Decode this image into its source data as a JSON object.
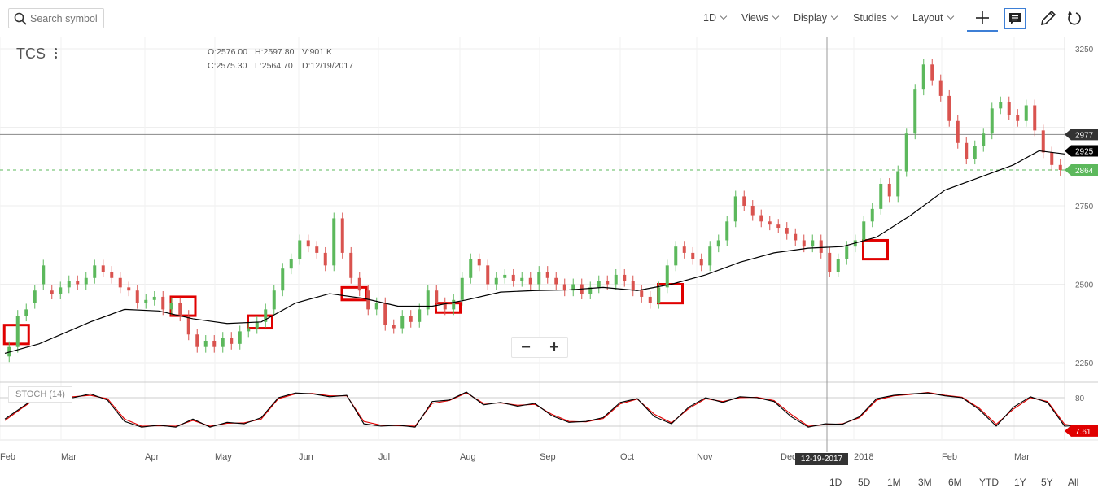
{
  "search": {
    "placeholder": "Search symbol"
  },
  "toolbar": {
    "interval": "1D",
    "views": "Views",
    "display": "Display",
    "studies": "Studies",
    "layout": "Layout"
  },
  "symbol": "TCS",
  "ohlc": {
    "open": "O:2576.00",
    "high": "H:2597.80",
    "volume": "V:901 K",
    "close": "C:2575.30",
    "low": "L:2564.70",
    "date": "D:12/19/2017"
  },
  "study_label": "STOCH (14)",
  "crosshair_date": "12-19-2017",
  "ranges": [
    "1D",
    "5D",
    "1M",
    "3M",
    "6M",
    "YTD",
    "1Y",
    "5Y",
    "All"
  ],
  "colors": {
    "up": "#5cb85c",
    "down": "#d9534f",
    "ma": "#000000",
    "stoch_k": "#000000",
    "stoch_d": "#e00000",
    "highlight": "#e00000"
  },
  "chart_data": {
    "type": "candlestick",
    "title": "TCS",
    "price_axis": {
      "ticks": [
        "3250",
        "2750",
        "2500",
        "2250"
      ],
      "ylim": [
        2200,
        3270
      ]
    },
    "x_axis": {
      "ticks": [
        "Feb",
        "Mar",
        "Apr",
        "May",
        "Jun",
        "Jul",
        "Aug",
        "Sep",
        "Oct",
        "Nov",
        "Dec",
        "2018",
        "Feb",
        "Mar"
      ]
    },
    "markers": {
      "crosshair_price": "2977",
      "ma_value": "2925",
      "last_price": "2864"
    },
    "series": [
      {
        "type": "candlestick",
        "values": [
          [
            1,
            2270,
            2300
          ],
          [
            3,
            2300,
            2400
          ],
          [
            5,
            2400,
            2420
          ],
          [
            7,
            2440,
            2480
          ],
          [
            9,
            2500,
            2560
          ],
          [
            11,
            2480,
            2470
          ],
          [
            13,
            2470,
            2490
          ],
          [
            15,
            2490,
            2510
          ],
          [
            17,
            2510,
            2500
          ],
          [
            19,
            2500,
            2520
          ],
          [
            21,
            2520,
            2560
          ],
          [
            23,
            2560,
            2540
          ],
          [
            25,
            2540,
            2520
          ],
          [
            27,
            2520,
            2490
          ],
          [
            29,
            2490,
            2480
          ],
          [
            31,
            2480,
            2440
          ],
          [
            33,
            2440,
            2450
          ],
          [
            35,
            2450,
            2460
          ],
          [
            37,
            2460,
            2420
          ],
          [
            39,
            2420,
            2440
          ],
          [
            41,
            2440,
            2400
          ],
          [
            43,
            2400,
            2340
          ],
          [
            45,
            2340,
            2300
          ],
          [
            47,
            2300,
            2320
          ],
          [
            49,
            2320,
            2300
          ],
          [
            51,
            2300,
            2330
          ],
          [
            53,
            2330,
            2310
          ],
          [
            55,
            2310,
            2350
          ],
          [
            57,
            2350,
            2360
          ],
          [
            59,
            2360,
            2380
          ],
          [
            61,
            2380,
            2420
          ],
          [
            63,
            2420,
            2480
          ],
          [
            65,
            2480,
            2550
          ],
          [
            67,
            2550,
            2580
          ],
          [
            69,
            2580,
            2640
          ],
          [
            71,
            2640,
            2620
          ],
          [
            73,
            2620,
            2600
          ],
          [
            75,
            2600,
            2560
          ],
          [
            77,
            2560,
            2710
          ],
          [
            79,
            2710,
            2600
          ],
          [
            81,
            2600,
            2520
          ],
          [
            83,
            2520,
            2480
          ],
          [
            85,
            2480,
            2420
          ],
          [
            87,
            2420,
            2440
          ],
          [
            89,
            2440,
            2370
          ],
          [
            91,
            2370,
            2360
          ],
          [
            93,
            2360,
            2400
          ],
          [
            95,
            2400,
            2380
          ],
          [
            97,
            2380,
            2420
          ],
          [
            99,
            2420,
            2480
          ],
          [
            101,
            2480,
            2440
          ],
          [
            103,
            2440,
            2420
          ],
          [
            105,
            2420,
            2450
          ],
          [
            107,
            2450,
            2520
          ],
          [
            109,
            2520,
            2580
          ],
          [
            111,
            2580,
            2560
          ],
          [
            113,
            2560,
            2500
          ],
          [
            115,
            2500,
            2520
          ],
          [
            117,
            2520,
            2530
          ],
          [
            119,
            2530,
            2510
          ],
          [
            121,
            2510,
            2520
          ],
          [
            123,
            2520,
            2500
          ],
          [
            125,
            2500,
            2540
          ],
          [
            127,
            2540,
            2520
          ],
          [
            129,
            2520,
            2500
          ],
          [
            131,
            2500,
            2480
          ],
          [
            133,
            2480,
            2500
          ],
          [
            135,
            2500,
            2470
          ],
          [
            137,
            2470,
            2490
          ],
          [
            139,
            2490,
            2510
          ],
          [
            141,
            2510,
            2500
          ],
          [
            143,
            2500,
            2530
          ],
          [
            145,
            2530,
            2510
          ],
          [
            147,
            2510,
            2480
          ],
          [
            149,
            2480,
            2460
          ],
          [
            151,
            2460,
            2440
          ],
          [
            153,
            2440,
            2490
          ],
          [
            155,
            2490,
            2560
          ],
          [
            157,
            2560,
            2620
          ],
          [
            159,
            2620,
            2600
          ],
          [
            161,
            2600,
            2580
          ],
          [
            163,
            2580,
            2560
          ],
          [
            165,
            2560,
            2620
          ],
          [
            167,
            2620,
            2640
          ],
          [
            169,
            2640,
            2700
          ],
          [
            171,
            2700,
            2780
          ],
          [
            173,
            2780,
            2750
          ],
          [
            175,
            2750,
            2720
          ],
          [
            177,
            2720,
            2700
          ],
          [
            179,
            2700,
            2690
          ],
          [
            181,
            2690,
            2680
          ],
          [
            183,
            2680,
            2660
          ],
          [
            185,
            2660,
            2640
          ],
          [
            187,
            2640,
            2620
          ],
          [
            189,
            2620,
            2640
          ],
          [
            191,
            2640,
            2600
          ],
          [
            193,
            2600,
            2540
          ],
          [
            195,
            2540,
            2580
          ],
          [
            197,
            2580,
            2620
          ],
          [
            199,
            2620,
            2640
          ],
          [
            201,
            2640,
            2700
          ],
          [
            203,
            2700,
            2740
          ],
          [
            205,
            2740,
            2820
          ],
          [
            207,
            2820,
            2780
          ],
          [
            209,
            2780,
            2860
          ],
          [
            211,
            2860,
            2980
          ],
          [
            213,
            2980,
            3120
          ],
          [
            215,
            3120,
            3200
          ],
          [
            217,
            3200,
            3150
          ],
          [
            219,
            3150,
            3100
          ],
          [
            221,
            3100,
            3020
          ],
          [
            223,
            3020,
            2950
          ],
          [
            225,
            2950,
            2900
          ],
          [
            227,
            2900,
            2940
          ],
          [
            229,
            2940,
            2980
          ],
          [
            231,
            2980,
            3060
          ],
          [
            233,
            3060,
            3080
          ],
          [
            235,
            3080,
            3040
          ],
          [
            237,
            3040,
            3020
          ],
          [
            239,
            3020,
            3070
          ],
          [
            241,
            3070,
            2990
          ],
          [
            243,
            2990,
            2920
          ],
          [
            245,
            2920,
            2880
          ],
          [
            247,
            2880,
            2864
          ]
        ]
      },
      {
        "name": "MA",
        "type": "line",
        "values": [
          [
            0,
            2280
          ],
          [
            8,
            2310
          ],
          [
            20,
            2380
          ],
          [
            28,
            2420
          ],
          [
            36,
            2415
          ],
          [
            44,
            2390
          ],
          [
            52,
            2375
          ],
          [
            60,
            2380
          ],
          [
            68,
            2440
          ],
          [
            76,
            2470
          ],
          [
            84,
            2455
          ],
          [
            92,
            2430
          ],
          [
            100,
            2430
          ],
          [
            108,
            2450
          ],
          [
            116,
            2475
          ],
          [
            124,
            2480
          ],
          [
            132,
            2482
          ],
          [
            140,
            2490
          ],
          [
            148,
            2480
          ],
          [
            156,
            2500
          ],
          [
            164,
            2530
          ],
          [
            172,
            2570
          ],
          [
            180,
            2600
          ],
          [
            188,
            2615
          ],
          [
            196,
            2620
          ],
          [
            204,
            2650
          ],
          [
            212,
            2720
          ],
          [
            220,
            2800
          ],
          [
            228,
            2840
          ],
          [
            236,
            2880
          ],
          [
            242,
            2925
          ],
          [
            248,
            2915
          ]
        ]
      }
    ],
    "highlights": [
      [
        1,
        2310,
        2370
      ],
      [
        40,
        2400,
        2460
      ],
      [
        58,
        2360,
        2400
      ],
      [
        80,
        2450,
        2490
      ],
      [
        102,
        2410,
        2440
      ],
      [
        154,
        2440,
        2500
      ],
      [
        202,
        2580,
        2640
      ]
    ],
    "stoch": {
      "label": "STOCH (14)",
      "ticks": [
        "80"
      ],
      "k": [
        [
          0,
          35
        ],
        [
          4,
          60
        ],
        [
          8,
          85
        ],
        [
          12,
          82
        ],
        [
          16,
          80
        ],
        [
          20,
          88
        ],
        [
          24,
          75
        ],
        [
          28,
          30
        ],
        [
          32,
          18
        ],
        [
          36,
          22
        ],
        [
          40,
          18
        ],
        [
          44,
          35
        ],
        [
          48,
          18
        ],
        [
          52,
          28
        ],
        [
          56,
          25
        ],
        [
          60,
          38
        ],
        [
          64,
          80
        ],
        [
          68,
          90
        ],
        [
          72,
          88
        ],
        [
          76,
          82
        ],
        [
          80,
          85
        ],
        [
          84,
          25
        ],
        [
          88,
          20
        ],
        [
          92,
          22
        ],
        [
          96,
          18
        ],
        [
          100,
          72
        ],
        [
          104,
          75
        ],
        [
          108,
          92
        ],
        [
          112,
          65
        ],
        [
          116,
          70
        ],
        [
          120,
          62
        ],
        [
          124,
          68
        ],
        [
          128,
          42
        ],
        [
          132,
          28
        ],
        [
          136,
          30
        ],
        [
          140,
          38
        ],
        [
          144,
          70
        ],
        [
          148,
          78
        ],
        [
          152,
          40
        ],
        [
          156,
          25
        ],
        [
          160,
          60
        ],
        [
          164,
          80
        ],
        [
          168,
          70
        ],
        [
          172,
          82
        ],
        [
          176,
          80
        ],
        [
          180,
          72
        ],
        [
          184,
          40
        ],
        [
          188,
          18
        ],
        [
          192,
          25
        ],
        [
          196,
          24
        ],
        [
          200,
          40
        ],
        [
          204,
          78
        ],
        [
          208,
          85
        ],
        [
          212,
          88
        ],
        [
          216,
          90
        ],
        [
          220,
          84
        ],
        [
          224,
          80
        ],
        [
          228,
          55
        ],
        [
          232,
          20
        ],
        [
          236,
          60
        ],
        [
          240,
          82
        ],
        [
          244,
          70
        ],
        [
          248,
          20
        ],
        [
          252,
          22
        ]
      ],
      "d": [
        [
          0,
          32
        ],
        [
          4,
          58
        ],
        [
          8,
          83
        ],
        [
          12,
          82
        ],
        [
          16,
          82
        ],
        [
          20,
          85
        ],
        [
          24,
          78
        ],
        [
          28,
          35
        ],
        [
          32,
          20
        ],
        [
          36,
          21
        ],
        [
          40,
          20
        ],
        [
          44,
          32
        ],
        [
          48,
          20
        ],
        [
          52,
          26
        ],
        [
          56,
          27
        ],
        [
          60,
          35
        ],
        [
          64,
          78
        ],
        [
          68,
          88
        ],
        [
          72,
          89
        ],
        [
          76,
          84
        ],
        [
          80,
          84
        ],
        [
          84,
          30
        ],
        [
          88,
          22
        ],
        [
          92,
          21
        ],
        [
          96,
          20
        ],
        [
          100,
          68
        ],
        [
          104,
          74
        ],
        [
          108,
          90
        ],
        [
          112,
          68
        ],
        [
          116,
          69
        ],
        [
          120,
          64
        ],
        [
          124,
          66
        ],
        [
          128,
          45
        ],
        [
          132,
          30
        ],
        [
          136,
          29
        ],
        [
          140,
          36
        ],
        [
          144,
          67
        ],
        [
          148,
          77
        ],
        [
          152,
          45
        ],
        [
          156,
          27
        ],
        [
          160,
          57
        ],
        [
          164,
          78
        ],
        [
          168,
          72
        ],
        [
          172,
          80
        ],
        [
          176,
          81
        ],
        [
          180,
          74
        ],
        [
          184,
          45
        ],
        [
          188,
          20
        ],
        [
          192,
          23
        ],
        [
          196,
          25
        ],
        [
          200,
          38
        ],
        [
          204,
          75
        ],
        [
          208,
          84
        ],
        [
          212,
          87
        ],
        [
          216,
          91
        ],
        [
          220,
          85
        ],
        [
          224,
          81
        ],
        [
          228,
          58
        ],
        [
          232,
          24
        ],
        [
          236,
          56
        ],
        [
          240,
          80
        ],
        [
          244,
          72
        ],
        [
          248,
          24
        ],
        [
          252,
          18
        ]
      ],
      "current": "7.61"
    }
  }
}
